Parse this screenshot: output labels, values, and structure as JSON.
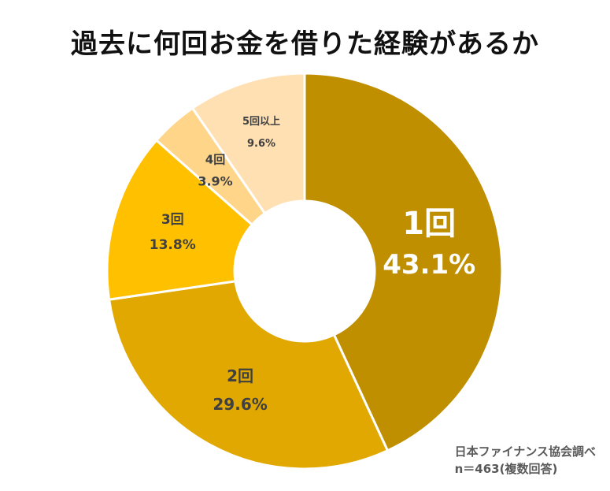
{
  "chart_data": {
    "type": "pie",
    "title": "過去に何回お金を借りた経験があるか",
    "categories": [
      "1回",
      "2回",
      "3回",
      "4回",
      "5回以上"
    ],
    "values": [
      43.1,
      29.6,
      13.8,
      3.9,
      9.6
    ],
    "value_labels": [
      "43.1%",
      "29.6%",
      "13.8%",
      "3.9%",
      "9.6%"
    ],
    "colors": [
      "#BF8F00",
      "#E0A800",
      "#FFC000",
      "#FFD58A",
      "#FFE0B3"
    ],
    "donut": true,
    "legend": "none"
  },
  "source": {
    "line1": "日本ファイナンス協会調べ",
    "line2": "n＝463(複数回答)"
  }
}
